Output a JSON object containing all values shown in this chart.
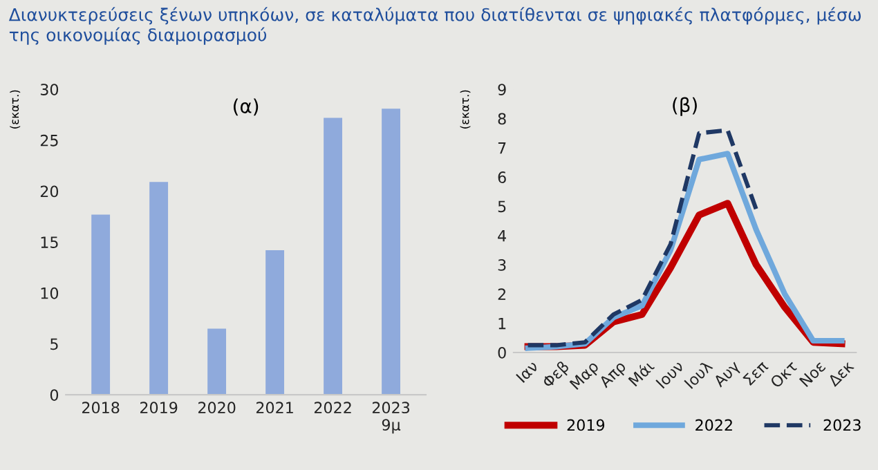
{
  "chart_data": [
    {
      "type": "bar",
      "title": "(α)",
      "ylabel": "(εκατ.)",
      "annotations": [
        "Διανυκτερεύσεις ξένων υπηκόων, σε καταλύματα που διατίθενται σε ψηφιακές πλατφόρμες, μέσω της οικονομίας διαμοιρασμού"
      ],
      "categories": [
        "2018",
        "2019",
        "2020",
        "2021",
        "2022",
        "2023\n9μ"
      ],
      "values": [
        17.7,
        20.9,
        6.5,
        14.2,
        27.2,
        28.1
      ],
      "color": "#8faadc",
      "ylim": [
        0,
        30
      ],
      "yticks": [
        0,
        5,
        10,
        15,
        20,
        25,
        30
      ],
      "grid": false
    },
    {
      "type": "line",
      "title": "(β)",
      "ylabel": "(εκατ.)",
      "categories": [
        "Ιαν",
        "Φεβ",
        "Μαρ",
        "Απρ",
        "Μάι",
        "Ιουν",
        "Ιουλ",
        "Αυγ",
        "Σεπ",
        "Οκτ",
        "Νοε",
        "Δεκ"
      ],
      "ylim": [
        0,
        9
      ],
      "yticks": [
        0,
        1,
        2,
        3,
        4,
        5,
        6,
        7,
        8,
        9
      ],
      "grid": false,
      "legend": "bottom",
      "series": [
        {
          "name": "2019",
          "color": "#c00000",
          "line_style": "solid",
          "values": [
            0.2,
            0.2,
            0.25,
            1.05,
            1.3,
            2.9,
            4.7,
            5.1,
            3.0,
            1.55,
            0.35,
            0.3
          ]
        },
        {
          "name": "2022",
          "color": "#6fa8dc",
          "line_style": "solid",
          "values": [
            0.15,
            0.2,
            0.3,
            1.2,
            1.6,
            3.5,
            6.6,
            6.8,
            4.2,
            2.0,
            0.4,
            0.4
          ]
        },
        {
          "name": "2023",
          "color": "#1f3864",
          "line_style": "dashed",
          "values": [
            0.25,
            0.25,
            0.35,
            1.3,
            1.8,
            3.7,
            7.5,
            7.6,
            4.9,
            null,
            null,
            null
          ]
        }
      ]
    }
  ]
}
